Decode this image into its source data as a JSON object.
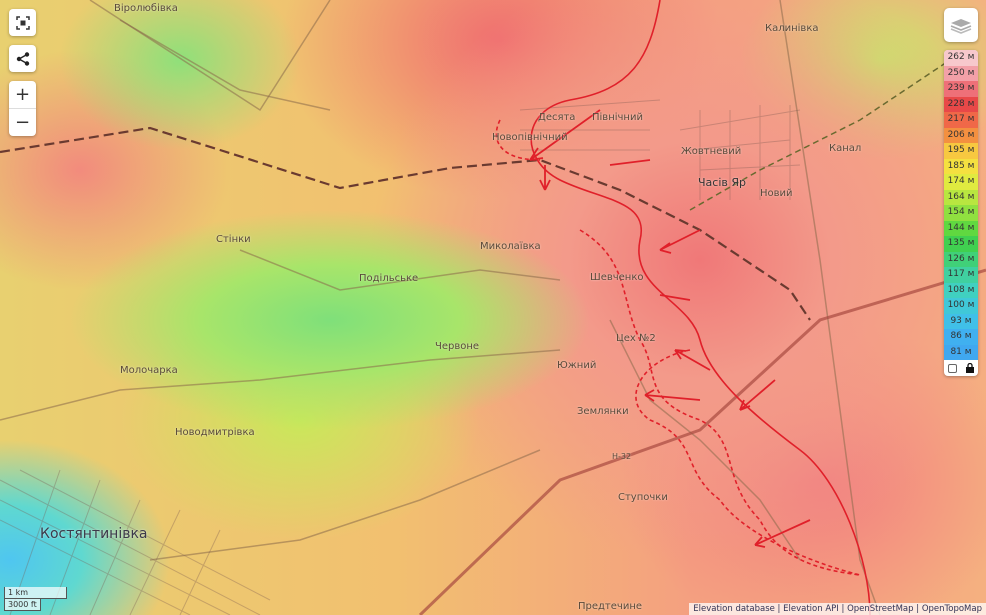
{
  "map": {
    "places": [
      {
        "name": "Віролюбівка"
      },
      {
        "name": "Калинівка"
      },
      {
        "name": "Новопівнічний"
      },
      {
        "name": "Десята"
      },
      {
        "name": "Північний"
      },
      {
        "name": "Жовтневий"
      },
      {
        "name": "Часів Яр"
      },
      {
        "name": "Новий"
      },
      {
        "name": "Канал"
      },
      {
        "name": "Стінки"
      },
      {
        "name": "Миколаївка"
      },
      {
        "name": "Подільське"
      },
      {
        "name": "Шевченко"
      },
      {
        "name": "Цех №2"
      },
      {
        "name": "Червоне"
      },
      {
        "name": "Южний"
      },
      {
        "name": "Молочарка"
      },
      {
        "name": "Землянки"
      },
      {
        "name": "Новодмитрівка"
      },
      {
        "name": "Ступочки"
      },
      {
        "name": "Костянтинівка"
      },
      {
        "name": "Предтечине"
      }
    ],
    "road_label": "Н-32",
    "front_line_color": "#e0202a"
  },
  "controls": {
    "fit": "fit-bounds-icon",
    "share": "share-icon",
    "zoom_in": "+",
    "zoom_out": "−",
    "layers": "layers-icon"
  },
  "legend": {
    "items": [
      {
        "label": "262 м",
        "color": "#f7c8cc"
      },
      {
        "label": "250 м",
        "color": "#f3a0a8"
      },
      {
        "label": "239 м",
        "color": "#ee7078"
      },
      {
        "label": "228 м",
        "color": "#e84848"
      },
      {
        "label": "217 м",
        "color": "#f06848"
      },
      {
        "label": "206 м",
        "color": "#f39040"
      },
      {
        "label": "195 м",
        "color": "#f7c840"
      },
      {
        "label": "185 м",
        "color": "#f4e040"
      },
      {
        "label": "174 м",
        "color": "#e0ea40"
      },
      {
        "label": "164 м",
        "color": "#b8e640"
      },
      {
        "label": "154 м",
        "color": "#90e040"
      },
      {
        "label": "144 м",
        "color": "#60d840"
      },
      {
        "label": "135 м",
        "color": "#40d050"
      },
      {
        "label": "126 м",
        "color": "#40d078"
      },
      {
        "label": "117 м",
        "color": "#40d0a0"
      },
      {
        "label": "108 м",
        "color": "#40d0c0"
      },
      {
        "label": "100 м",
        "color": "#40c8d8"
      },
      {
        "label": "93 м",
        "color": "#40c0e8"
      },
      {
        "label": "86 м",
        "color": "#40b0f0"
      },
      {
        "label": "81 м",
        "color": "#40a8f0"
      }
    ]
  },
  "scale": {
    "metric": "1 km",
    "imperial": "3000 ft"
  },
  "attribution": [
    "Elevation database",
    "Elevation API",
    "OpenStreetMap",
    "OpenTopoMap"
  ]
}
